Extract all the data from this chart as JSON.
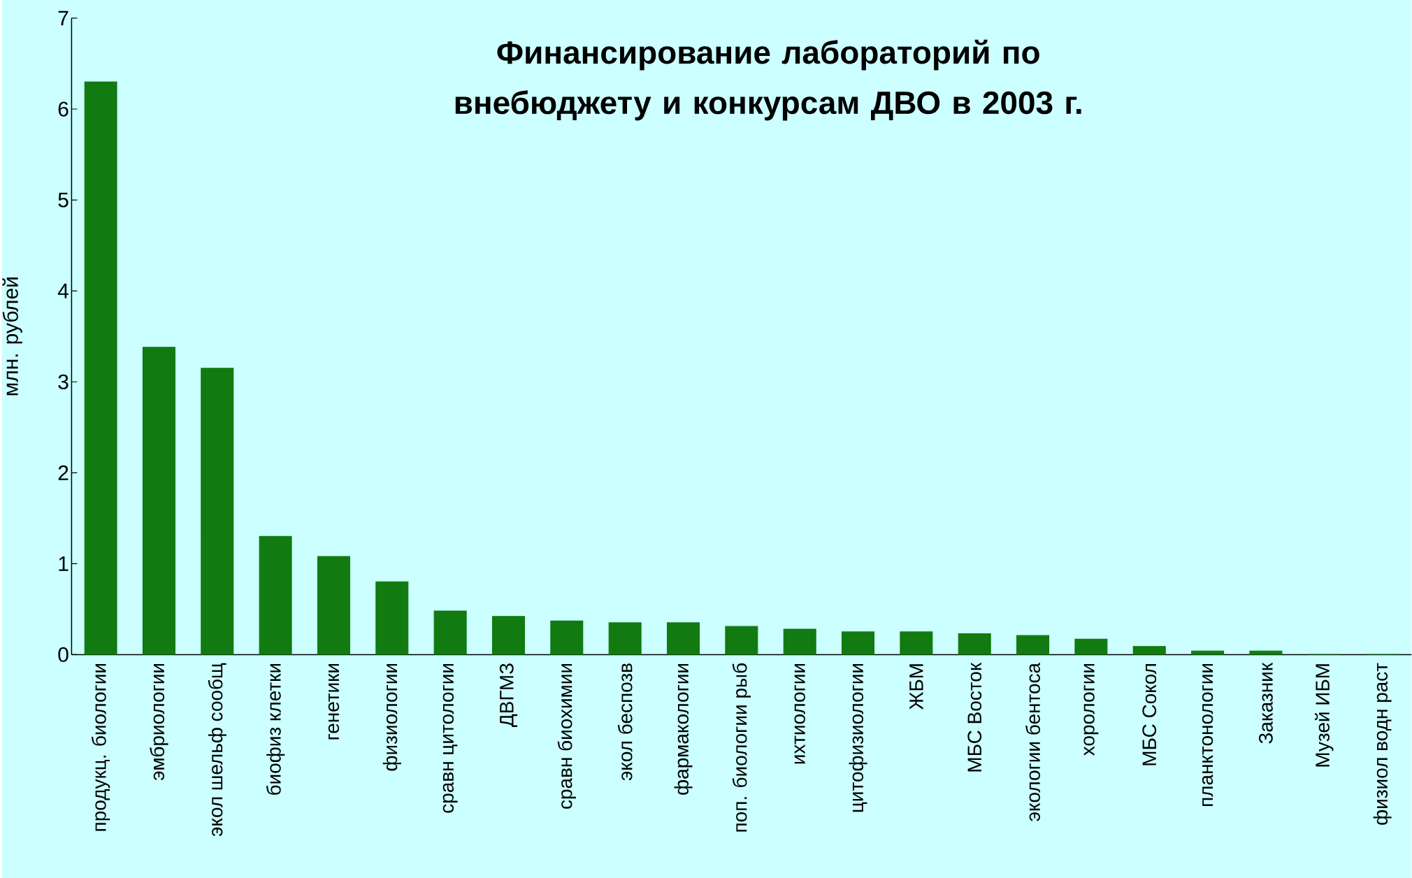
{
  "chart_data": {
    "type": "bar",
    "title": "Финансирование лабораторий по внебюджету и конкурсам ДВО в 2003 г.",
    "ylabel": "млн. рублей",
    "categories": [
      "продукц. биологии",
      "эмбриологии",
      "экол шельф сообщ",
      "биофиз клетки",
      "генетики",
      "физиологии",
      "сравн цитологии",
      "ДВГМЗ",
      "сравн биохимии",
      "экол беспозв",
      "фармакологии",
      "поп. биологии рыб",
      "ихтиологии",
      "цитофизиологии",
      "ЖБМ",
      "МБС Восток",
      "экологии бентоса",
      "хорологии",
      "МБС Сокол",
      "планктонологии",
      "Заказник",
      "Музей ИБМ",
      "физиол водн раст"
    ],
    "values": [
      6.3,
      3.38,
      3.15,
      1.3,
      1.08,
      0.8,
      0.48,
      0.42,
      0.37,
      0.35,
      0.35,
      0.31,
      0.28,
      0.25,
      0.25,
      0.23,
      0.21,
      0.17,
      0.09,
      0.04,
      0.04,
      0,
      0
    ],
    "color": "#117a11",
    "ylim": [
      0,
      7
    ],
    "yticks": [
      0,
      1,
      2,
      3,
      4,
      5,
      6,
      7
    ],
    "grid": false
  }
}
